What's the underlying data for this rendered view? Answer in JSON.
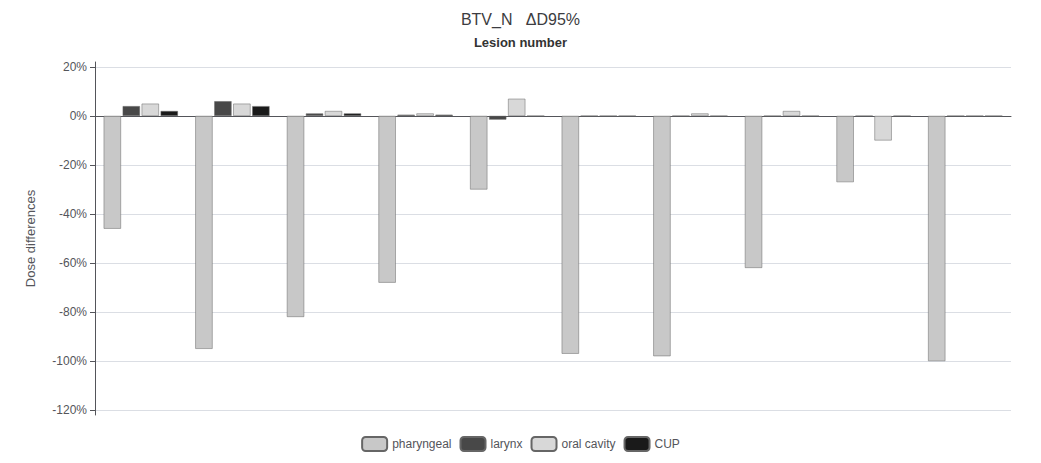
{
  "chart_data": {
    "type": "bar",
    "title": "BTV_N   ΔD95%",
    "annotation": "Lesion number",
    "ylabel": "Dose differences",
    "categories": [
      null,
      null,
      null,
      null,
      null,
      null,
      null,
      null,
      null,
      null
    ],
    "series": [
      {
        "name": "pharyngeal",
        "color": "#c8c8c8",
        "values": [
          -0.46,
          -0.95,
          -0.82,
          -0.68,
          -0.3,
          -0.97,
          -0.98,
          -0.62,
          -0.27,
          -1.0
        ]
      },
      {
        "name": "larynx",
        "color": "#484848",
        "values": [
          0.04,
          0.06,
          0.01,
          0.005,
          -0.015,
          0.0,
          0.0,
          0.0,
          0.0,
          0.0
        ]
      },
      {
        "name": "oral cavity",
        "color": "#d8d8d8",
        "values": [
          0.05,
          0.05,
          0.02,
          0.01,
          0.07,
          0.0,
          0.01,
          0.02,
          -0.1,
          0.0
        ]
      },
      {
        "name": "CUP",
        "color": "#1a1a1a",
        "values": [
          0.02,
          0.04,
          0.01,
          0.005,
          0.0,
          0.0,
          0.0,
          0.0,
          0.0,
          0.0
        ]
      }
    ],
    "ylim": [
      -1.22,
      0.22
    ],
    "yticks": [
      {
        "value": 0.2,
        "label": "20%"
      },
      {
        "value": 0.0,
        "label": "0%"
      },
      {
        "value": -0.2,
        "label": "-20%"
      },
      {
        "value": -0.4,
        "label": "-40%"
      },
      {
        "value": -0.6,
        "label": "-60%"
      },
      {
        "value": -0.8,
        "label": "-80%"
      },
      {
        "value": -1.0,
        "label": "-100%"
      },
      {
        "value": -1.2,
        "label": "-120%"
      }
    ],
    "grid": true,
    "legend": "bottom"
  }
}
